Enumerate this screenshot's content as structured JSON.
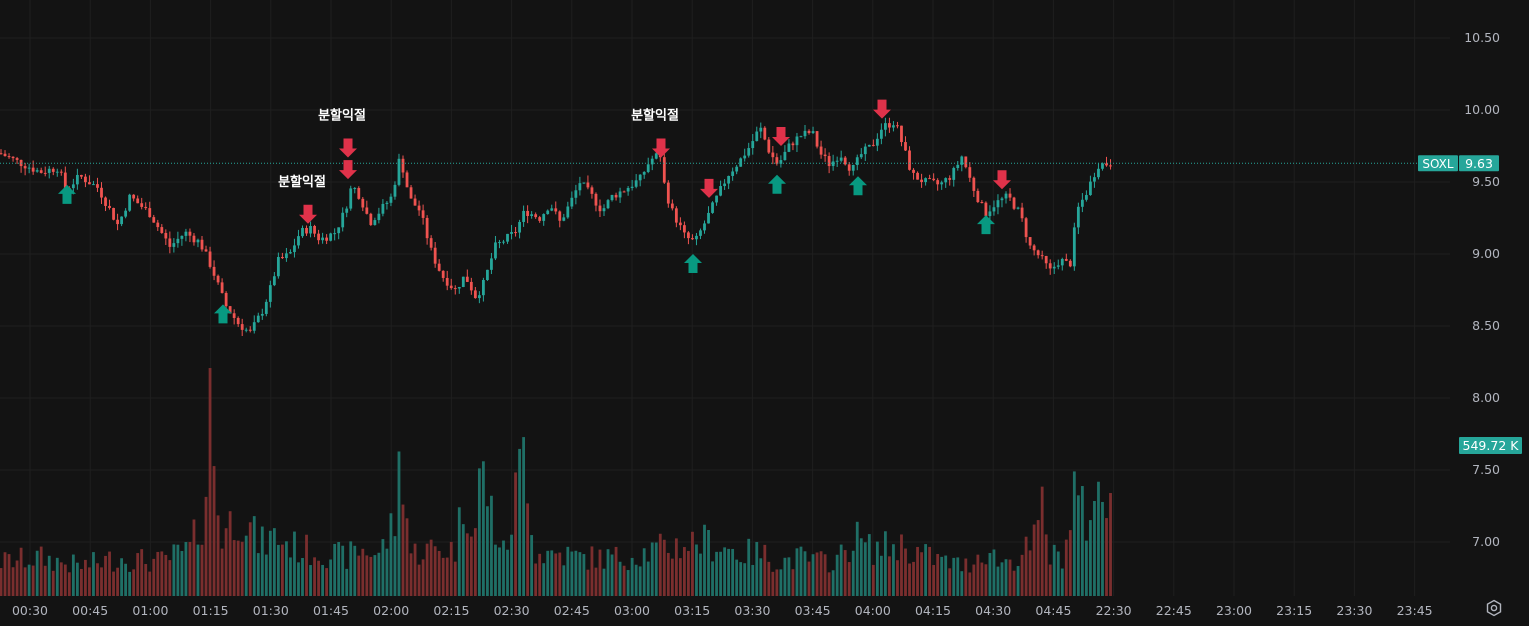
{
  "symbol": "SOXL",
  "last_price_label": "9.63",
  "volume_label": "549.72 K",
  "colors": {
    "background": "#131313",
    "grid": "#1f1f1f",
    "up": "#26a69a",
    "down": "#ef5350",
    "up_volume": "#1f6f66",
    "down_volume": "#7a2e2e",
    "signal_up": "#089981",
    "signal_down": "#e0324a",
    "axis_text": "#b2b5be"
  },
  "chart_data": {
    "type": "candlestick",
    "title": "",
    "ylim": [
      6.65,
      10.65
    ],
    "y_ticks": [
      "10.50",
      "10.00",
      "9.50",
      "9.00",
      "8.50",
      "8.00",
      "7.50",
      "7.00"
    ],
    "x_ticks": [
      "00:30",
      "00:45",
      "01:00",
      "01:15",
      "01:30",
      "01:45",
      "02:00",
      "02:15",
      "02:30",
      "02:45",
      "03:00",
      "03:15",
      "03:30",
      "03:45",
      "04:00",
      "04:15",
      "04:30",
      "04:45",
      "22:30",
      "22:45",
      "23:00",
      "23:15",
      "23:30",
      "23:45"
    ],
    "close_path": [
      [
        0,
        9.7
      ],
      [
        18,
        9.64
      ],
      [
        40,
        9.57
      ],
      [
        58,
        9.6
      ],
      [
        66,
        9.45
      ],
      [
        80,
        9.54
      ],
      [
        98,
        9.46
      ],
      [
        118,
        9.2
      ],
      [
        130,
        9.4
      ],
      [
        150,
        9.28
      ],
      [
        170,
        9.05
      ],
      [
        185,
        9.15
      ],
      [
        200,
        9.08
      ],
      [
        212,
        8.9
      ],
      [
        225,
        8.65
      ],
      [
        238,
        8.52
      ],
      [
        250,
        8.45
      ],
      [
        262,
        8.6
      ],
      [
        270,
        8.75
      ],
      [
        278,
        8.95
      ],
      [
        290,
        9.0
      ],
      [
        300,
        9.15
      ],
      [
        310,
        9.18
      ],
      [
        320,
        9.1
      ],
      [
        335,
        9.15
      ],
      [
        345,
        9.3
      ],
      [
        352,
        9.48
      ],
      [
        360,
        9.4
      ],
      [
        370,
        9.22
      ],
      [
        380,
        9.3
      ],
      [
        392,
        9.4
      ],
      [
        400,
        9.68
      ],
      [
        410,
        9.38
      ],
      [
        420,
        9.3
      ],
      [
        432,
        9.0
      ],
      [
        442,
        8.85
      ],
      [
        455,
        8.75
      ],
      [
        465,
        8.85
      ],
      [
        476,
        8.7
      ],
      [
        484,
        8.8
      ],
      [
        495,
        9.05
      ],
      [
        505,
        9.1
      ],
      [
        515,
        9.15
      ],
      [
        525,
        9.3
      ],
      [
        540,
        9.25
      ],
      [
        550,
        9.35
      ],
      [
        560,
        9.22
      ],
      [
        570,
        9.35
      ],
      [
        580,
        9.5
      ],
      [
        592,
        9.4
      ],
      [
        602,
        9.3
      ],
      [
        612,
        9.4
      ],
      [
        625,
        9.45
      ],
      [
        640,
        9.52
      ],
      [
        650,
        9.65
      ],
      [
        660,
        9.7
      ],
      [
        665,
        9.45
      ],
      [
        672,
        9.3
      ],
      [
        685,
        9.12
      ],
      [
        695,
        9.08
      ],
      [
        705,
        9.22
      ],
      [
        716,
        9.38
      ],
      [
        728,
        9.55
      ],
      [
        740,
        9.65
      ],
      [
        750,
        9.75
      ],
      [
        760,
        9.88
      ],
      [
        770,
        9.7
      ],
      [
        778,
        9.62
      ],
      [
        790,
        9.76
      ],
      [
        800,
        9.82
      ],
      [
        812,
        9.85
      ],
      [
        820,
        9.7
      ],
      [
        830,
        9.62
      ],
      [
        840,
        9.7
      ],
      [
        852,
        9.58
      ],
      [
        862,
        9.7
      ],
      [
        872,
        9.75
      ],
      [
        882,
        9.88
      ],
      [
        895,
        9.92
      ],
      [
        903,
        9.75
      ],
      [
        912,
        9.55
      ],
      [
        925,
        9.5
      ],
      [
        940,
        9.48
      ],
      [
        952,
        9.55
      ],
      [
        962,
        9.68
      ],
      [
        972,
        9.48
      ],
      [
        985,
        9.28
      ],
      [
        995,
        9.35
      ],
      [
        1008,
        9.4
      ],
      [
        1020,
        9.28
      ],
      [
        1030,
        9.05
      ],
      [
        1040,
        8.98
      ],
      [
        1050,
        8.88
      ],
      [
        1060,
        8.96
      ],
      [
        1070,
        8.92
      ],
      [
        1077,
        9.3
      ],
      [
        1088,
        9.45
      ],
      [
        1098,
        9.62
      ],
      [
        1112,
        9.63
      ]
    ],
    "volume_path": [
      [
        0,
        40
      ],
      [
        40,
        45
      ],
      [
        80,
        35
      ],
      [
        120,
        45
      ],
      [
        160,
        40
      ],
      [
        190,
        55
      ],
      [
        205,
        100
      ],
      [
        210,
        230
      ],
      [
        220,
        70
      ],
      [
        240,
        100
      ],
      [
        260,
        60
      ],
      [
        275,
        70
      ],
      [
        300,
        55
      ],
      [
        330,
        50
      ],
      [
        345,
        45
      ],
      [
        360,
        55
      ],
      [
        380,
        50
      ],
      [
        398,
        95
      ],
      [
        400,
        200
      ],
      [
        410,
        50
      ],
      [
        430,
        55
      ],
      [
        455,
        55
      ],
      [
        465,
        120
      ],
      [
        478,
        70
      ],
      [
        480,
        160
      ],
      [
        495,
        80
      ],
      [
        505,
        45
      ],
      [
        525,
        185
      ],
      [
        535,
        50
      ],
      [
        560,
        50
      ],
      [
        580,
        45
      ],
      [
        600,
        45
      ],
      [
        620,
        45
      ],
      [
        640,
        50
      ],
      [
        660,
        55
      ],
      [
        680,
        60
      ],
      [
        700,
        65
      ],
      [
        720,
        60
      ],
      [
        740,
        50
      ],
      [
        760,
        50
      ],
      [
        780,
        40
      ],
      [
        800,
        45
      ],
      [
        820,
        40
      ],
      [
        840,
        45
      ],
      [
        855,
        70
      ],
      [
        870,
        55
      ],
      [
        900,
        60
      ],
      [
        920,
        50
      ],
      [
        945,
        40
      ],
      [
        965,
        35
      ],
      [
        985,
        55
      ],
      [
        1000,
        40
      ],
      [
        1020,
        45
      ],
      [
        1038,
        70
      ],
      [
        1040,
        130
      ],
      [
        1050,
        45
      ],
      [
        1065,
        50
      ],
      [
        1075,
        130
      ],
      [
        1085,
        85
      ],
      [
        1095,
        120
      ],
      [
        1105,
        100
      ],
      [
        1112,
        140
      ]
    ],
    "signals": [
      {
        "type": "buy",
        "x": 67,
        "tip": 9.48
      },
      {
        "type": "buy",
        "x": 223,
        "tip": 8.65
      },
      {
        "type": "sell",
        "x": 308,
        "tip": 9.21,
        "label": "분할익절"
      },
      {
        "type": "sell",
        "x": 348,
        "tip": 9.67,
        "label": "분할익절"
      },
      {
        "type": "sell",
        "x": 348,
        "tip": 9.52
      },
      {
        "type": "sell",
        "x": 661,
        "tip": 9.67,
        "label": "분할익절"
      },
      {
        "type": "buy",
        "x": 693,
        "tip": 9.0
      },
      {
        "type": "sell",
        "x": 709,
        "tip": 9.39
      },
      {
        "type": "buy",
        "x": 777,
        "tip": 9.55
      },
      {
        "type": "sell",
        "x": 781,
        "tip": 9.75
      },
      {
        "type": "buy",
        "x": 858,
        "tip": 9.54
      },
      {
        "type": "sell",
        "x": 882,
        "tip": 9.94
      },
      {
        "type": "buy",
        "x": 986,
        "tip": 9.27
      },
      {
        "type": "sell",
        "x": 1002,
        "tip": 9.45
      }
    ]
  }
}
